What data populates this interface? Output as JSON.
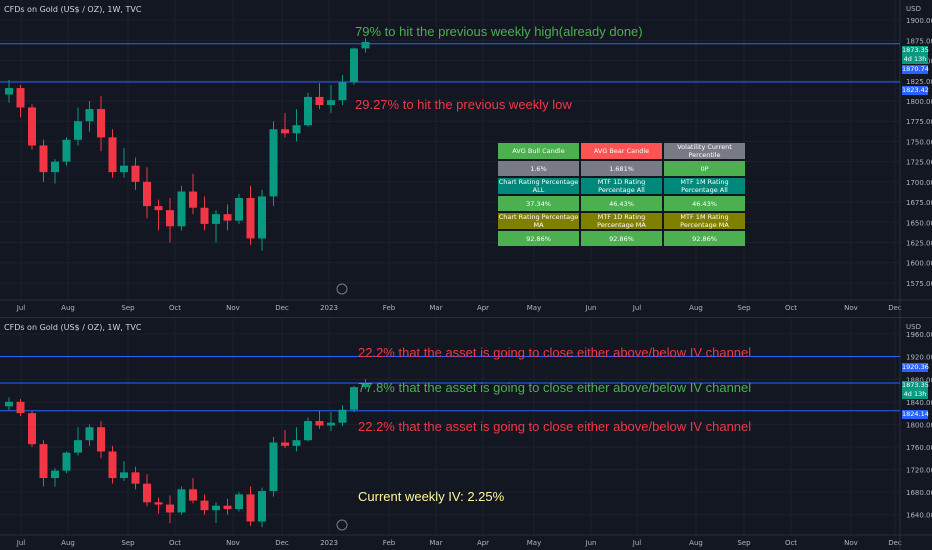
{
  "colors": {
    "up": "#089981",
    "down": "#f23645",
    "line": "#2962ff",
    "green_text": "#4caf50",
    "red_text": "#f23645",
    "yellow_text": "#fff59d"
  },
  "top": {
    "title": "CFDs on Gold (US$ / OZ), 1W, TVC",
    "currency": "USD",
    "y_ticks": [
      "1900.00",
      "1875.00",
      "1850.00",
      "1825.00",
      "1800.00",
      "1775.00",
      "1750.00",
      "1725.00",
      "1700.00",
      "1675.00",
      "1650.00",
      "1625.00",
      "1600.00",
      "1575.00"
    ],
    "x_ticks": [
      "Jul",
      "Aug",
      "Sep",
      "Oct",
      "Nov",
      "Dec",
      "2023",
      "Feb",
      "Mar",
      "Apr",
      "May",
      "Jun",
      "Jul",
      "Aug",
      "Sep",
      "Oct",
      "Nov",
      "Dec"
    ],
    "annotations": [
      "79% to hit the previous weekly high(already done)",
      "29.27% to hit the previous weekly low"
    ],
    "price_badges": [
      "1873.35",
      "4d 13h",
      "1870.74",
      "1823.42"
    ],
    "table": [
      [
        "AVG Bull Candle",
        "AVG Bear Candle",
        "Volatility Current Percentile"
      ],
      [
        "1.6%",
        "1.681%",
        "0P"
      ],
      [
        "Chart Rating Percentage ALL",
        "MTF 1D Rating Percentage All",
        "MTF 1M Rating Percentage All"
      ],
      [
        "37.34%",
        "46.43%",
        "46.43%"
      ],
      [
        "Chart Rating Percentage MA",
        "MTF 1D Rating Percentage MA",
        "MTF 1M Rating Percentage MA"
      ],
      [
        "92.86%",
        "92.86%",
        "92.86%"
      ]
    ]
  },
  "bottom": {
    "title": "CFDs on Gold (US$ / OZ), 1W, TVC",
    "currency": "USD",
    "y_ticks": [
      "1960.00",
      "1920.00",
      "1880.00",
      "1840.00",
      "1800.00",
      "1760.00",
      "1720.00",
      "1680.00",
      "1640.00"
    ],
    "x_ticks": [
      "Jul",
      "Aug",
      "Sep",
      "Oct",
      "Nov",
      "Dec",
      "2023",
      "Feb",
      "Mar",
      "Apr",
      "May",
      "Jun",
      "Jul",
      "Aug",
      "Sep",
      "Oct",
      "Nov",
      "Dec"
    ],
    "annotations": [
      "22.2% that the asset is going to close either above/below IV channel",
      "77.8% that the asset is going to close either above/below IV channel",
      "22.2% that the asset is going to close either above/below IV channel",
      "Current weekly IV: 2.25%"
    ],
    "price_badges": [
      "1920.36",
      "1873.35",
      "4d 13h",
      "1824.14"
    ]
  },
  "chart_data": [
    {
      "type": "candlestick",
      "title": "CFDs on Gold (US$ / OZ), 1W, TVC",
      "y_range": [
        1565,
        1915
      ],
      "levels": [
        1870.74,
        1823.42
      ],
      "candles": [
        [
          1808,
          1826,
          1798,
          1816
        ],
        [
          1816,
          1820,
          1780,
          1792
        ],
        [
          1792,
          1796,
          1740,
          1745
        ],
        [
          1745,
          1752,
          1700,
          1712
        ],
        [
          1712,
          1728,
          1698,
          1725
        ],
        [
          1725,
          1755,
          1720,
          1752
        ],
        [
          1752,
          1792,
          1745,
          1775
        ],
        [
          1775,
          1800,
          1762,
          1790
        ],
        [
          1790,
          1806,
          1738,
          1755
        ],
        [
          1755,
          1765,
          1705,
          1712
        ],
        [
          1712,
          1742,
          1705,
          1720
        ],
        [
          1720,
          1730,
          1690,
          1700
        ],
        [
          1700,
          1718,
          1655,
          1670
        ],
        [
          1670,
          1678,
          1640,
          1665
        ],
        [
          1665,
          1680,
          1625,
          1645
        ],
        [
          1645,
          1695,
          1640,
          1688
        ],
        [
          1688,
          1710,
          1660,
          1668
        ],
        [
          1668,
          1682,
          1640,
          1648
        ],
        [
          1648,
          1665,
          1625,
          1660
        ],
        [
          1660,
          1672,
          1640,
          1652
        ],
        [
          1652,
          1685,
          1648,
          1680
        ],
        [
          1680,
          1695,
          1622,
          1630
        ],
        [
          1630,
          1690,
          1615,
          1682
        ],
        [
          1682,
          1775,
          1670,
          1765
        ],
        [
          1765,
          1785,
          1755,
          1760
        ],
        [
          1760,
          1790,
          1750,
          1770
        ],
        [
          1770,
          1810,
          1768,
          1805
        ],
        [
          1805,
          1822,
          1790,
          1795
        ],
        [
          1795,
          1820,
          1785,
          1801
        ],
        [
          1801,
          1832,
          1795,
          1823
        ],
        [
          1823,
          1866,
          1820,
          1865
        ],
        [
          1865,
          1878,
          1860,
          1873
        ]
      ]
    },
    {
      "type": "candlestick",
      "title": "CFDs on Gold (US$ / OZ), 1W, TVC",
      "y_range": [
        1620,
        1985
      ],
      "levels": [
        1920.36,
        1873.35,
        1824.14
      ],
      "candles": [
        [
          1832,
          1848,
          1825,
          1840
        ],
        [
          1840,
          1845,
          1815,
          1820
        ],
        [
          1820,
          1824,
          1760,
          1765
        ],
        [
          1765,
          1772,
          1690,
          1705
        ],
        [
          1705,
          1722,
          1690,
          1718
        ],
        [
          1718,
          1752,
          1714,
          1750
        ],
        [
          1750,
          1795,
          1745,
          1772
        ],
        [
          1772,
          1800,
          1762,
          1795
        ],
        [
          1795,
          1806,
          1740,
          1752
        ],
        [
          1752,
          1762,
          1695,
          1705
        ],
        [
          1705,
          1735,
          1700,
          1715
        ],
        [
          1715,
          1725,
          1685,
          1695
        ],
        [
          1695,
          1712,
          1655,
          1662
        ],
        [
          1662,
          1670,
          1642,
          1658
        ],
        [
          1658,
          1674,
          1625,
          1644
        ],
        [
          1644,
          1690,
          1640,
          1685
        ],
        [
          1685,
          1705,
          1660,
          1665
        ],
        [
          1665,
          1676,
          1640,
          1648
        ],
        [
          1648,
          1662,
          1625,
          1656
        ],
        [
          1656,
          1668,
          1640,
          1650
        ],
        [
          1650,
          1680,
          1646,
          1676
        ],
        [
          1676,
          1690,
          1620,
          1628
        ],
        [
          1628,
          1688,
          1618,
          1682
        ],
        [
          1682,
          1778,
          1672,
          1768
        ],
        [
          1768,
          1790,
          1758,
          1762
        ],
        [
          1762,
          1795,
          1752,
          1772
        ],
        [
          1772,
          1812,
          1770,
          1806
        ],
        [
          1806,
          1824,
          1792,
          1798
        ],
        [
          1798,
          1822,
          1788,
          1803
        ],
        [
          1803,
          1834,
          1797,
          1826
        ],
        [
          1826,
          1868,
          1822,
          1866
        ],
        [
          1866,
          1880,
          1862,
          1873
        ]
      ]
    }
  ]
}
